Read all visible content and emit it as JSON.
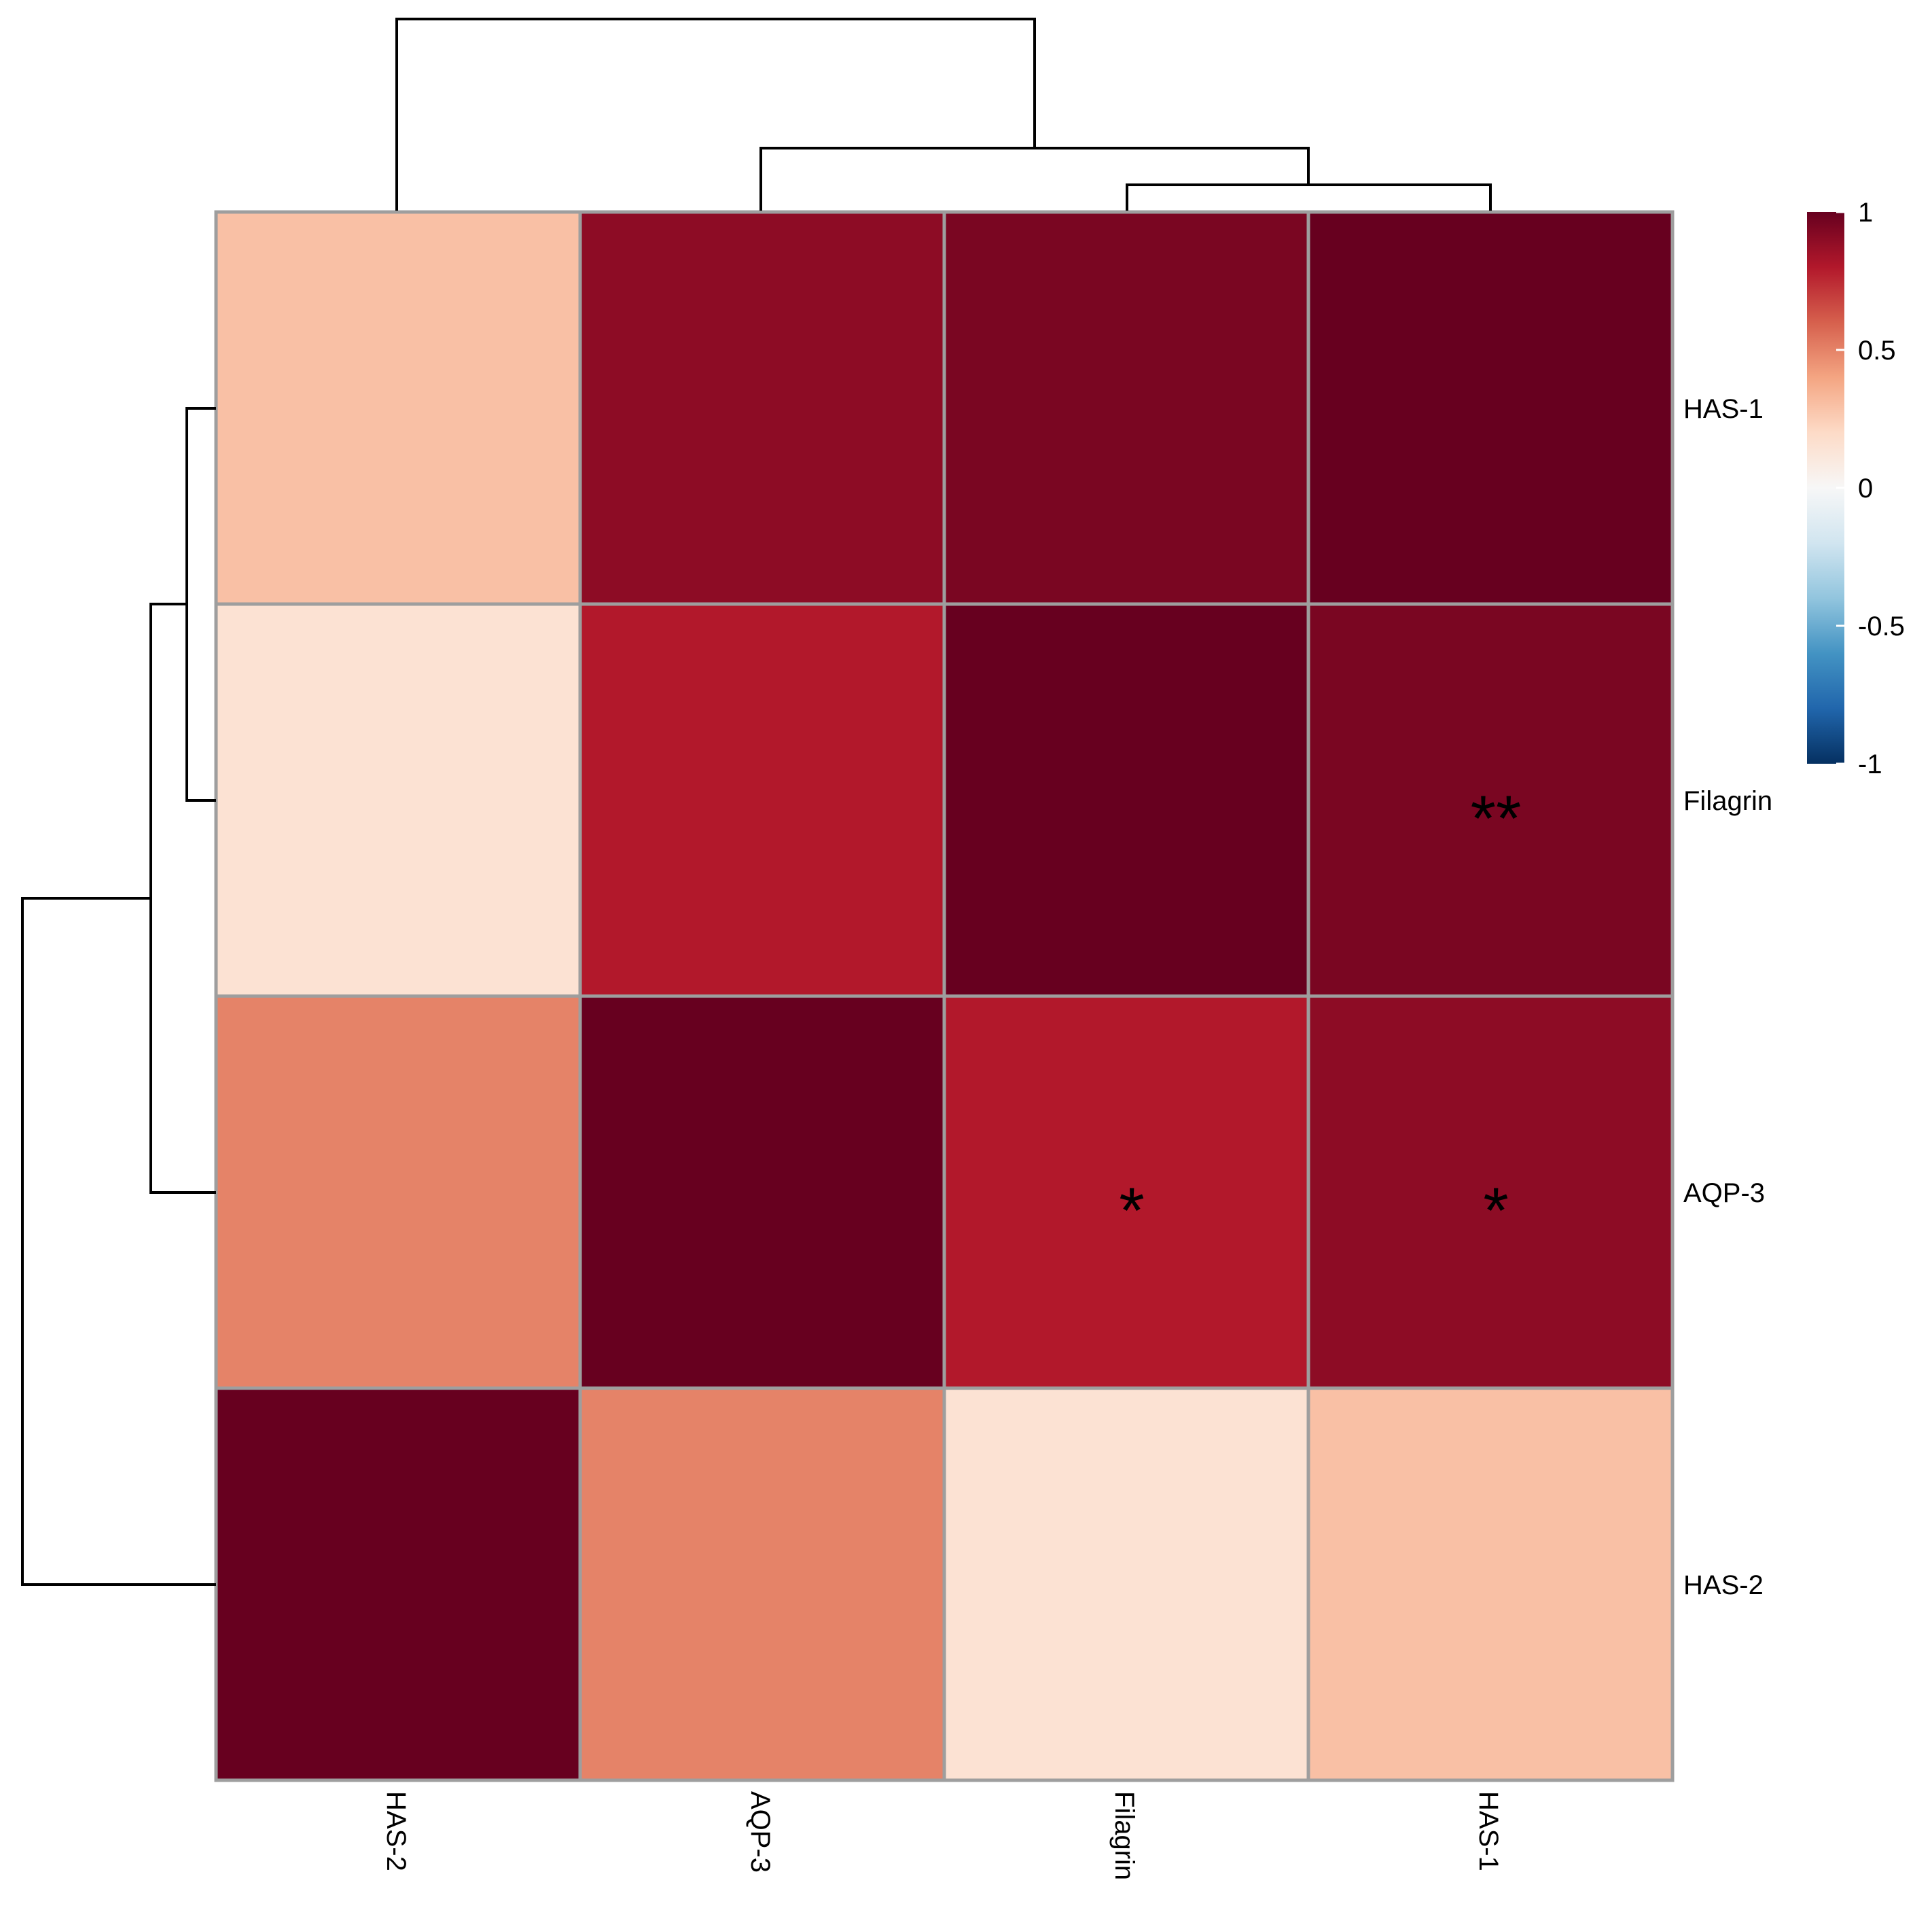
{
  "chart_data": {
    "type": "heatmap",
    "title": "",
    "rows": [
      "HAS-1",
      "Filagrin",
      "AQP-3",
      "HAS-2"
    ],
    "columns": [
      "HAS-2",
      "AQP-3",
      "Filagrin",
      "HAS-1"
    ],
    "values": [
      [
        0.3,
        0.9,
        0.95,
        1.0
      ],
      [
        0.15,
        0.8,
        1.0,
        0.95
      ],
      [
        0.5,
        1.0,
        0.8,
        0.9
      ],
      [
        1.0,
        0.5,
        0.15,
        0.3
      ]
    ],
    "annotations": [
      [
        "",
        "",
        "",
        ""
      ],
      [
        "",
        "",
        "",
        "**"
      ],
      [
        "",
        "",
        "*",
        "*"
      ],
      [
        "",
        "",
        "",
        ""
      ]
    ],
    "color_scale": {
      "min": -1,
      "max": 1,
      "ticks": [
        "1",
        "0.5",
        "0",
        "-0.5",
        "-1"
      ],
      "colors": [
        "#053061",
        "#2166ac",
        "#4393c3",
        "#92c5de",
        "#d1e5f0",
        "#f7f7f7",
        "#fddbc7",
        "#f4a582",
        "#d6604d",
        "#b2182b",
        "#67001f"
      ]
    },
    "legend_position": "right",
    "row_dendrogram": "left",
    "column_dendrogram": "top",
    "grid_color": "#9e9e9e"
  }
}
